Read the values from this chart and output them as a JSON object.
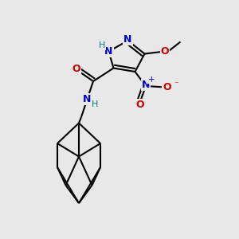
{
  "bg_color": "#e8e8e8",
  "atom_colors": {
    "N": "#0000cc",
    "O": "#cc0000",
    "C": "#000000",
    "H_label": "#008080"
  },
  "bond_color": "#000000",
  "bond_width": 1.5
}
